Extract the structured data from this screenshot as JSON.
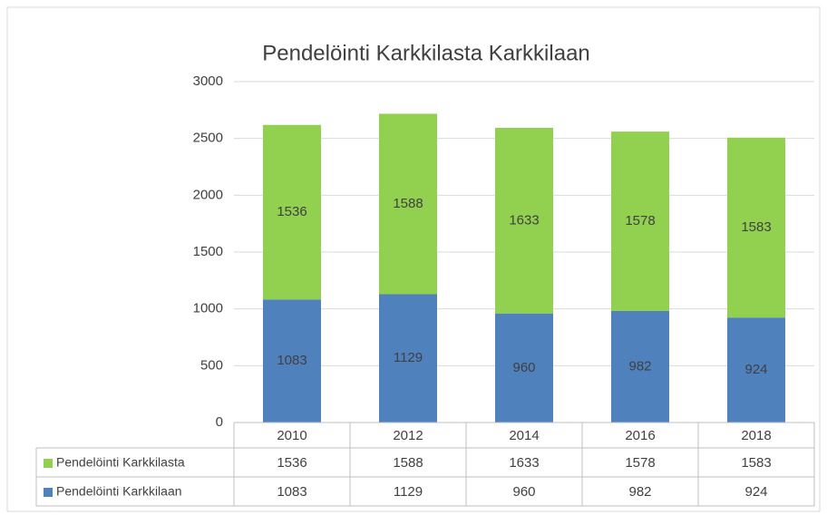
{
  "chart_data": {
    "type": "stacked_bar",
    "title": "Pendelöinti Karkkilasta Karkkilaan",
    "categories": [
      "2010",
      "2012",
      "2014",
      "2016",
      "2018"
    ],
    "series": [
      {
        "name": "Pendelöinti Karkkilaan",
        "color": "#4f81bd",
        "values": [
          1083,
          1129,
          960,
          982,
          924
        ]
      },
      {
        "name": "Pendelöinti Karkkilasta",
        "color": "#92d050",
        "values": [
          1536,
          1588,
          1633,
          1578,
          1583
        ]
      }
    ],
    "ylim": [
      0,
      3000
    ],
    "yticks": [
      0,
      500,
      1000,
      1500,
      2000,
      2500,
      3000
    ],
    "grid": true,
    "data_table": true
  }
}
